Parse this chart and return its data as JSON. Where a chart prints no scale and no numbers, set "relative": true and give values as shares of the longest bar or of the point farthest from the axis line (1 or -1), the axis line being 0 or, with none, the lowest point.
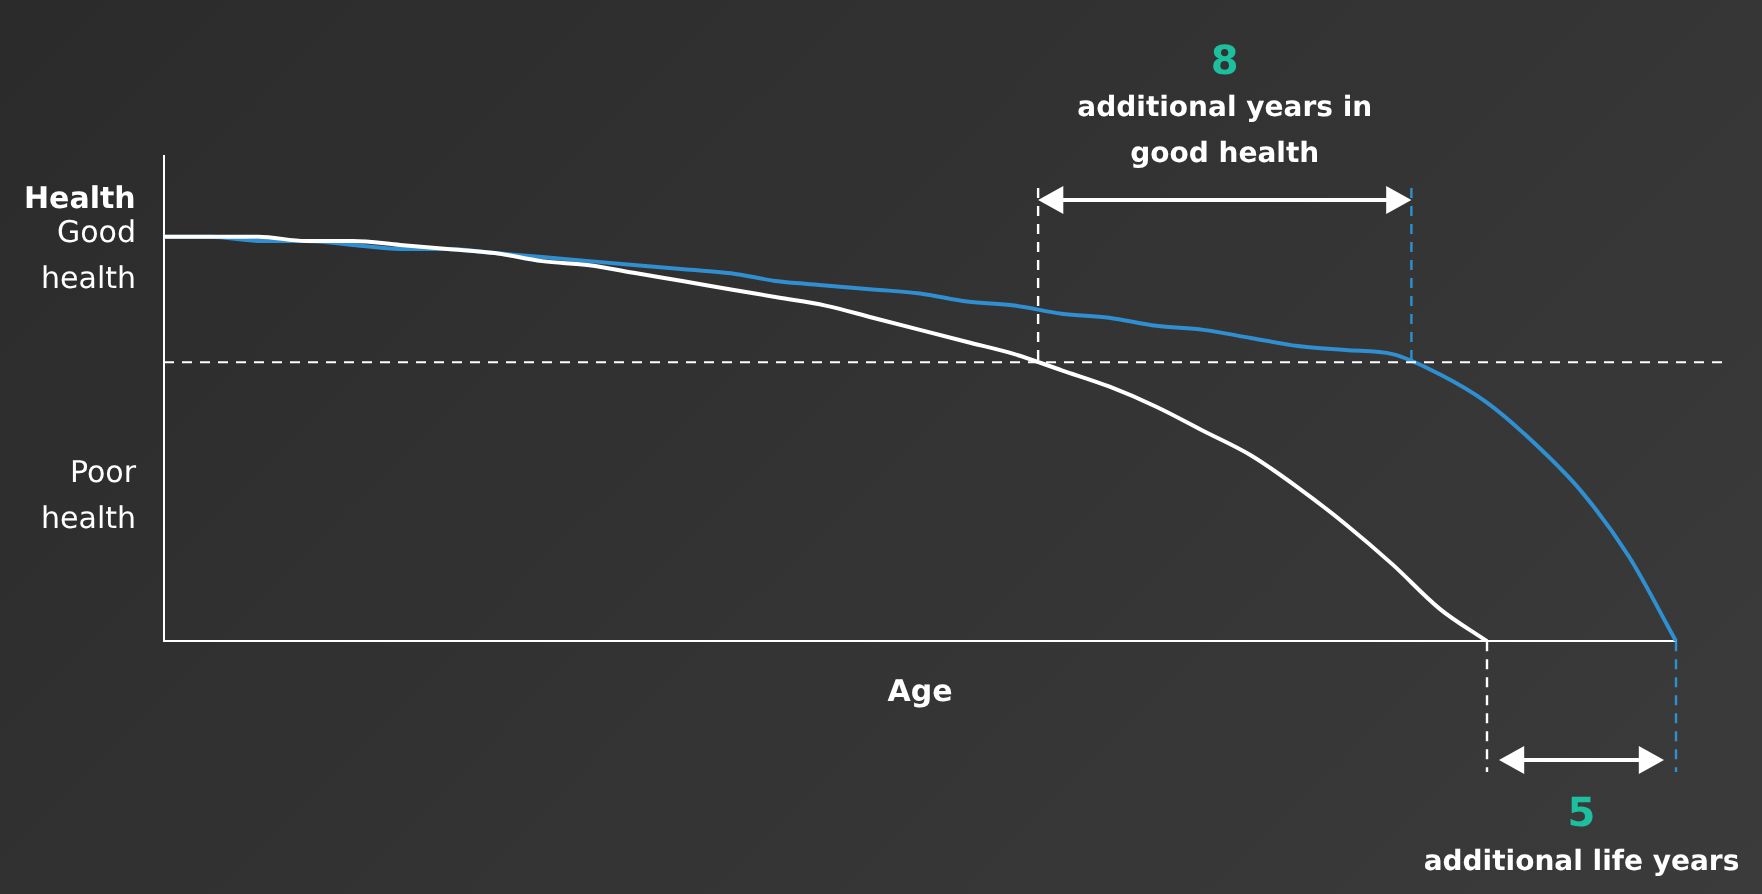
{
  "chart_data": {
    "type": "line",
    "relative": true,
    "xlabel": "Age",
    "ylabel": "Health",
    "legend": false,
    "grid": false,
    "marker": "none",
    "categories": [
      null,
      null,
      null,
      null,
      null,
      null,
      null,
      null,
      null,
      null,
      null,
      null,
      null,
      null,
      null,
      null,
      null,
      null,
      null,
      null,
      null,
      null,
      null,
      null,
      null,
      null,
      null,
      null,
      null,
      null,
      null,
      null,
      null
    ],
    "series": [
      {
        "color": "#ffffff",
        "values": [
          1,
          1,
          1,
          0.99,
          0.99,
          0.98,
          0.97,
          0.96,
          0.94,
          0.93,
          0.91,
          0.89,
          0.87,
          0.85,
          0.83,
          0.8,
          0.77,
          0.74,
          0.71,
          0.67,
          0.63,
          0.58,
          0.52,
          0.46,
          0.38,
          0.29,
          0.19,
          0.08,
          0,
          null,
          null,
          null,
          null
        ]
      },
      {
        "color": "#2f8fd0",
        "values": [
          1,
          1,
          0.99,
          0.99,
          0.98,
          0.97,
          0.97,
          0.96,
          0.95,
          0.94,
          0.93,
          0.92,
          0.91,
          0.89,
          0.88,
          0.87,
          0.86,
          0.84,
          0.83,
          0.81,
          0.8,
          0.78,
          0.77,
          0.75,
          0.73,
          0.72,
          0.71,
          0.66,
          0.59,
          0.49,
          0.37,
          0.21,
          0
        ]
      }
    ],
    "ref_lines": [
      {
        "axis": "y",
        "value": 0.69,
        "color": "#ffffff",
        "line_style": "dashed"
      }
    ],
    "annotations": [
      "Good health",
      "Poor health",
      "8",
      "additional years in good health",
      "5",
      "additional life years"
    ]
  }
}
